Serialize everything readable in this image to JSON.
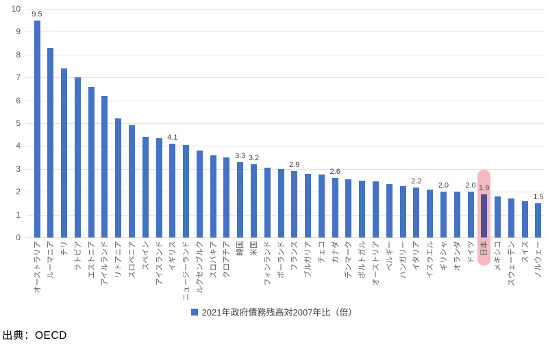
{
  "chart_data": {
    "type": "bar",
    "title": "",
    "legend": "2021年政府債務残高対2007年比（倍）",
    "ylabel": "",
    "xlabel": "",
    "ylim": [
      0,
      10
    ],
    "yticks": [
      0,
      1,
      2,
      3,
      4,
      5,
      6,
      7,
      8,
      9,
      10
    ],
    "grid": "horizontal",
    "legend_position": "bottom-center",
    "categories": [
      "オーストラリア",
      "ルーマニア",
      "チリ",
      "ラトビア",
      "エストニア",
      "アイルランド",
      "リトアニア",
      "スロベニア",
      "スペイン",
      "アイスランド",
      "イギリス",
      "ニュージーランド",
      "ルクセンブルク",
      "スロバキア",
      "クロアチア",
      "韓国",
      "米国",
      "フィンランド",
      "ポーランド",
      "フランス",
      "ブルガリア",
      "チェコ",
      "カナダ",
      "デンマーク",
      "ポルトガル",
      "オーストリア",
      "ベルギー",
      "ハンガリー",
      "イタリア",
      "イスラエル",
      "ギリシャ",
      "オランダ",
      "ドイツ",
      "日本",
      "メキシコ",
      "スウェーデン",
      "スイス",
      "ノルウェー"
    ],
    "values": [
      9.5,
      8.3,
      7.4,
      7.0,
      6.6,
      6.2,
      5.2,
      4.9,
      4.4,
      4.35,
      4.1,
      4.05,
      3.8,
      3.6,
      3.5,
      3.3,
      3.2,
      3.05,
      3.0,
      2.9,
      2.8,
      2.75,
      2.6,
      2.55,
      2.5,
      2.45,
      2.35,
      2.25,
      2.2,
      2.1,
      2.0,
      2.0,
      2.0,
      1.9,
      1.8,
      1.7,
      1.6,
      1.5
    ],
    "point_labels": [
      "9.5",
      null,
      null,
      null,
      null,
      null,
      null,
      null,
      null,
      null,
      "4.1",
      null,
      null,
      null,
      null,
      "3.3",
      "3.2",
      null,
      null,
      "2.9",
      null,
      null,
      "2.6",
      null,
      null,
      null,
      null,
      null,
      "2.2",
      null,
      "2.0",
      null,
      "2.0",
      "1.9",
      null,
      null,
      null,
      "1.5"
    ],
    "highlight": {
      "category": "日本",
      "index": 33,
      "band_color": "#f6b9bf",
      "bar_color": "#4f4e99"
    },
    "colors": {
      "bar": "#4472c4",
      "gridline": "#e2e2e2",
      "axis_line": "#d6d6d6",
      "tick_text": "#595959",
      "point_label_text": "#3f3f3f",
      "legend_text": "#404040"
    }
  },
  "legend": {
    "label": "2021年政府債務残高対2007年比（倍）"
  },
  "source": {
    "text": "出典：OECD"
  }
}
